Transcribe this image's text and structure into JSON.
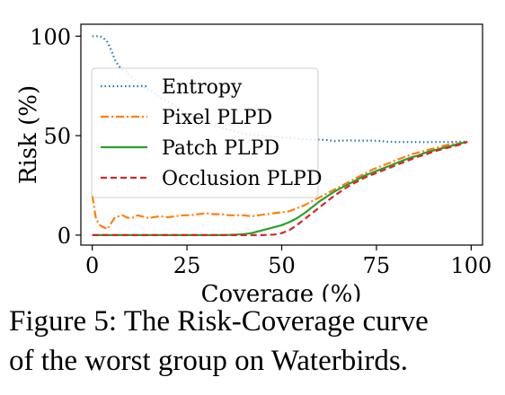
{
  "caption": {
    "line1": "Figure 5: The Risk-Coverage curve",
    "line2": "of the worst group on Waterbirds."
  },
  "chart_data": {
    "type": "line",
    "title": "",
    "xlabel": "Coverage (%)",
    "ylabel": "Risk (%)",
    "xlim": [
      -3,
      103
    ],
    "ylim": [
      -5,
      106
    ],
    "xticks": [
      0,
      25,
      50,
      75,
      100
    ],
    "yticks": [
      0,
      50,
      100
    ],
    "grid": false,
    "legend_position": "center-left",
    "series": [
      {
        "name": "Entropy",
        "color": "#1f77b4",
        "style": "dotted",
        "x": [
          0,
          1,
          2,
          3,
          4,
          5,
          6,
          7,
          8,
          9,
          10,
          12,
          14,
          16,
          18,
          20,
          22,
          24,
          26,
          28,
          30,
          32,
          34,
          36,
          38,
          40,
          42,
          44,
          46,
          48,
          50,
          52,
          54,
          56,
          58,
          60,
          62,
          64,
          66,
          68,
          70,
          72,
          74,
          76,
          78,
          80,
          82,
          84,
          86,
          88,
          90,
          92,
          94,
          96,
          98,
          99
        ],
        "y": [
          100,
          100,
          100,
          99,
          97,
          93,
          88,
          85,
          83,
          82,
          80,
          77,
          74,
          72,
          69,
          67,
          65,
          62,
          60,
          58,
          56,
          55,
          54,
          53,
          52,
          51,
          50.5,
          50,
          49.8,
          49.5,
          49,
          48.8,
          48.5,
          48.3,
          48,
          48,
          47.8,
          47.3,
          47.5,
          47.6,
          47.5,
          47.5,
          47.5,
          47.3,
          47,
          46.8,
          46.8,
          46.8,
          46.8,
          46.7,
          46.8,
          46.8,
          46.8,
          46.9,
          47,
          47
        ]
      },
      {
        "name": "Pixel PLPD",
        "color": "#ff7f0e",
        "style": "dashdot",
        "x": [
          0,
          1,
          2,
          3,
          4,
          5,
          6,
          7,
          8,
          9,
          10,
          11,
          12,
          13,
          14,
          15,
          16,
          18,
          20,
          22,
          24,
          26,
          28,
          30,
          32,
          34,
          36,
          38,
          40,
          42,
          44,
          46,
          48,
          50,
          52,
          54,
          56,
          58,
          60,
          62,
          64,
          66,
          68,
          70,
          72,
          74,
          76,
          78,
          80,
          82,
          84,
          86,
          88,
          90,
          92,
          94,
          96,
          98,
          99
        ],
        "y": [
          20,
          8,
          5,
          4,
          3,
          6,
          9,
          9.5,
          10,
          9,
          8.5,
          9,
          10,
          9.5,
          9,
          8.5,
          9,
          9.5,
          9,
          9.5,
          10,
          10,
          10.5,
          11,
          10.5,
          10.5,
          10,
          10,
          10,
          9.5,
          10,
          10.5,
          11,
          11.5,
          12,
          13.5,
          15,
          17,
          19,
          21,
          23,
          25,
          27,
          29,
          31,
          33,
          34.5,
          36,
          37.5,
          39,
          40.5,
          41.5,
          42.5,
          43.5,
          44.5,
          45.5,
          46,
          46.5,
          47
        ]
      },
      {
        "name": "Patch PLPD",
        "color": "#2ca02c",
        "style": "solid",
        "x": [
          0,
          5,
          10,
          15,
          20,
          25,
          30,
          35,
          38,
          40,
          42,
          44,
          46,
          48,
          50,
          52,
          54,
          56,
          58,
          60,
          62,
          64,
          66,
          68,
          70,
          72,
          74,
          76,
          78,
          80,
          82,
          84,
          86,
          88,
          90,
          92,
          94,
          96,
          98,
          99
        ],
        "y": [
          0,
          0,
          0,
          0,
          0,
          0,
          0,
          0,
          0.3,
          0.5,
          1,
          2,
          3,
          4,
          5,
          6.5,
          8.5,
          11,
          14,
          17,
          19.5,
          22,
          24,
          26,
          28,
          30,
          31.5,
          33,
          34.5,
          36,
          37.5,
          39,
          40,
          41.5,
          42.5,
          43.5,
          44.5,
          45.5,
          46.5,
          47
        ]
      },
      {
        "name": "Occlusion PLPD",
        "color": "#d62728",
        "style": "dashed",
        "x": [
          0,
          5,
          10,
          15,
          20,
          25,
          30,
          35,
          40,
          45,
          48,
          50,
          52,
          54,
          56,
          58,
          60,
          62,
          64,
          66,
          68,
          70,
          72,
          74,
          76,
          78,
          80,
          82,
          84,
          86,
          88,
          90,
          92,
          94,
          96,
          98,
          99
        ],
        "y": [
          0,
          0,
          0,
          0,
          0,
          0,
          0,
          0,
          0,
          0,
          0.3,
          1,
          2.5,
          5,
          8,
          11,
          14,
          17,
          20,
          22.5,
          25,
          27,
          29,
          30.5,
          32,
          33.5,
          35,
          36.5,
          38,
          39.5,
          40.5,
          42,
          43,
          44,
          45,
          46,
          47
        ]
      }
    ]
  }
}
